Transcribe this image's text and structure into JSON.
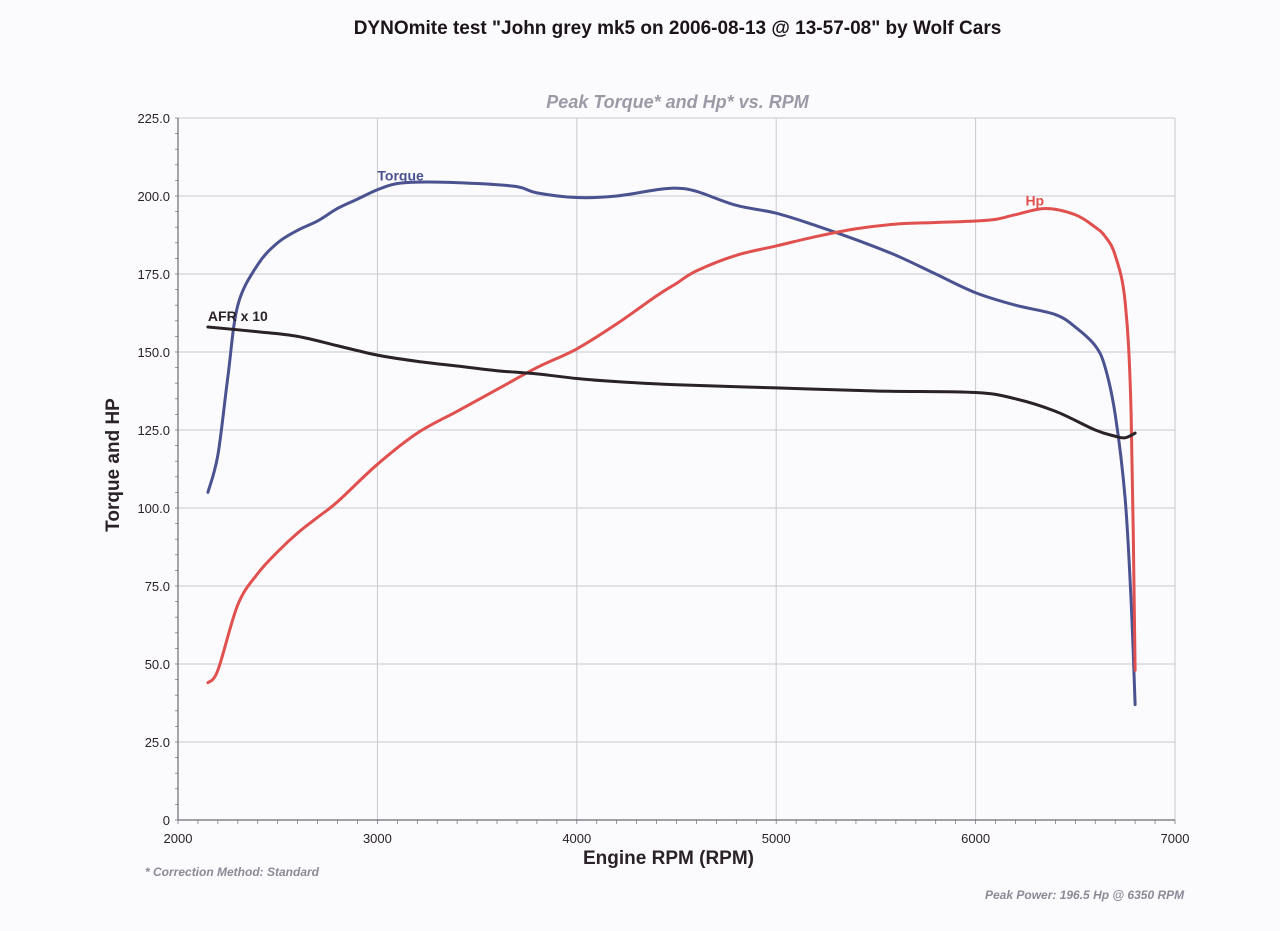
{
  "header": {
    "title": "DYNOmite test \"John grey mk5 on 2006-08-13 @ 13-57-08\" by Wolf Cars",
    "subtitle": "Peak Torque* and Hp* vs. RPM"
  },
  "footer": {
    "correction_note": "* Correction Method: Standard",
    "peak_power": "Peak Power: 196.5 Hp @ 6350 RPM"
  },
  "colors": {
    "torque": "#4a5290",
    "hp": "#e0504e",
    "afr": "#2a2226",
    "grid": "#c9c9d0",
    "axis": "#6a6a72"
  },
  "chart_data": {
    "type": "line",
    "title": "DYNOmite test \"John grey mk5 on 2006-08-13 @ 13-57-08\" by Wolf Cars",
    "subtitle": "Peak Torque* and Hp* vs. RPM",
    "xlabel": "Engine RPM (RPM)",
    "ylabel": "Torque and HP",
    "xlim": [
      2000,
      7000
    ],
    "ylim": [
      0,
      225
    ],
    "x_ticks": [
      2000,
      3000,
      4000,
      5000,
      6000,
      7000
    ],
    "y_ticks": [
      "0",
      "25.0",
      "50.0",
      "75.0",
      "100.0",
      "125.0",
      "150.0",
      "175.0",
      "200.0",
      "225.0"
    ],
    "grid": true,
    "legend": "inline labels on curves",
    "annotations": [
      "* Correction Method: Standard",
      "Peak Power: 196.5 Hp @ 6350 RPM"
    ],
    "series": [
      {
        "name": "Torque",
        "label_at": [
          3000,
          205
        ],
        "points": [
          [
            2150,
            105
          ],
          [
            2200,
            117
          ],
          [
            2250,
            142
          ],
          [
            2300,
            165
          ],
          [
            2400,
            178
          ],
          [
            2500,
            185
          ],
          [
            2600,
            189
          ],
          [
            2700,
            192
          ],
          [
            2800,
            196
          ],
          [
            2900,
            199
          ],
          [
            3000,
            202
          ],
          [
            3100,
            204
          ],
          [
            3250,
            204.5
          ],
          [
            3500,
            204
          ],
          [
            3700,
            203
          ],
          [
            3800,
            201
          ],
          [
            4000,
            199.5
          ],
          [
            4200,
            200
          ],
          [
            4400,
            202
          ],
          [
            4500,
            202.5
          ],
          [
            4600,
            201.5
          ],
          [
            4800,
            197
          ],
          [
            5000,
            194.5
          ],
          [
            5200,
            190.5
          ],
          [
            5400,
            186
          ],
          [
            5600,
            181
          ],
          [
            5800,
            175
          ],
          [
            6000,
            169
          ],
          [
            6200,
            165
          ],
          [
            6400,
            162
          ],
          [
            6500,
            158
          ],
          [
            6600,
            152
          ],
          [
            6650,
            145
          ],
          [
            6700,
            130
          ],
          [
            6750,
            103
          ],
          [
            6780,
            70
          ],
          [
            6800,
            37
          ]
        ]
      },
      {
        "name": "Hp",
        "label_at": [
          6250,
          197
        ],
        "points": [
          [
            2150,
            44
          ],
          [
            2200,
            48
          ],
          [
            2300,
            69
          ],
          [
            2400,
            79
          ],
          [
            2500,
            86
          ],
          [
            2600,
            92
          ],
          [
            2700,
            97
          ],
          [
            2800,
            102
          ],
          [
            3000,
            114
          ],
          [
            3200,
            124
          ],
          [
            3400,
            131
          ],
          [
            3600,
            138
          ],
          [
            3800,
            145
          ],
          [
            4000,
            151
          ],
          [
            4200,
            159
          ],
          [
            4400,
            168
          ],
          [
            4500,
            172
          ],
          [
            4600,
            176
          ],
          [
            4800,
            181
          ],
          [
            5000,
            184
          ],
          [
            5200,
            187
          ],
          [
            5400,
            189.5
          ],
          [
            5600,
            191
          ],
          [
            5800,
            191.5
          ],
          [
            6000,
            192
          ],
          [
            6100,
            192.5
          ],
          [
            6200,
            194
          ],
          [
            6350,
            196
          ],
          [
            6500,
            194
          ],
          [
            6600,
            190
          ],
          [
            6650,
            187
          ],
          [
            6700,
            181
          ],
          [
            6750,
            166
          ],
          [
            6780,
            130
          ],
          [
            6800,
            48
          ]
        ]
      },
      {
        "name": "AFR x 10",
        "label_at": [
          2150,
          160
        ],
        "points": [
          [
            2150,
            158
          ],
          [
            2400,
            156.5
          ],
          [
            2600,
            155
          ],
          [
            2800,
            152
          ],
          [
            3000,
            149
          ],
          [
            3200,
            147
          ],
          [
            3400,
            145.5
          ],
          [
            3600,
            144
          ],
          [
            3800,
            143
          ],
          [
            4000,
            141.5
          ],
          [
            4200,
            140.5
          ],
          [
            4500,
            139.5
          ],
          [
            5000,
            138.5
          ],
          [
            5500,
            137.5
          ],
          [
            6000,
            137
          ],
          [
            6200,
            135
          ],
          [
            6400,
            131
          ],
          [
            6600,
            125
          ],
          [
            6700,
            123
          ],
          [
            6750,
            122.5
          ],
          [
            6800,
            124
          ]
        ]
      }
    ]
  }
}
